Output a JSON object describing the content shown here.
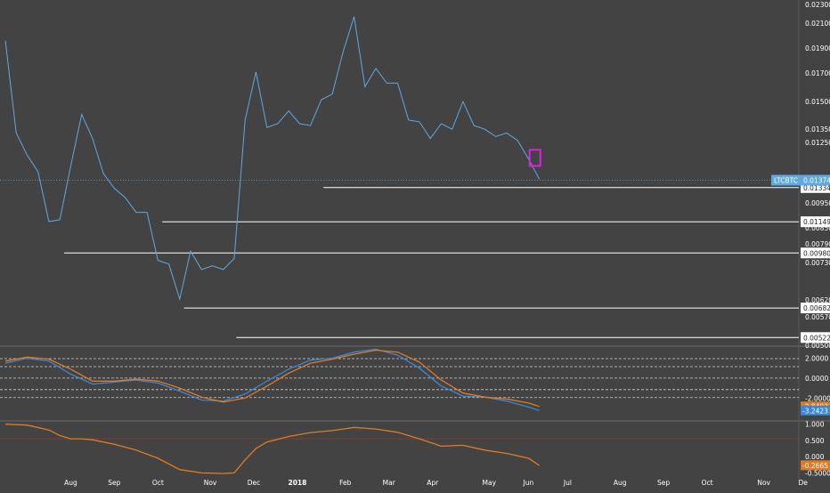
{
  "chart_data": [
    {
      "type": "line",
      "panel": "price",
      "symbol_label": "LTCBTC",
      "current_price_label": "0.01374",
      "ylim": [
        0.0048,
        0.0235
      ],
      "y_ticks": [
        "0.02300",
        "0.02100",
        "0.01900",
        "0.01700",
        "0.01500",
        "0.01350",
        "0.01250",
        "0.01050",
        "0.00950",
        "0.00850",
        "0.00790",
        "0.00730",
        "0.00620",
        "0.00570",
        "0.00500"
      ],
      "x_ticks": [
        {
          "label": "Aug",
          "t": 1.5
        },
        {
          "label": "Sep",
          "t": 2.5
        },
        {
          "label": "Oct",
          "t": 3.5
        },
        {
          "label": "Nov",
          "t": 4.7
        },
        {
          "label": "Dec",
          "t": 5.7
        },
        {
          "label": "2018",
          "t": 6.7,
          "bold": true
        },
        {
          "label": "Feb",
          "t": 7.8
        },
        {
          "label": "Mar",
          "t": 8.8
        },
        {
          "label": "Apr",
          "t": 9.8
        },
        {
          "label": "May",
          "t": 11.1
        },
        {
          "label": "Jun",
          "t": 12.0
        },
        {
          "label": "Jul",
          "t": 12.9
        },
        {
          "label": "Aug",
          "t": 14.1
        },
        {
          "label": "Sep",
          "t": 15.1
        },
        {
          "label": "Oct",
          "t": 16.1
        },
        {
          "label": "Nov",
          "t": 17.4
        },
        {
          "label": "De",
          "t": 18.3
        }
      ],
      "xlim": [
        0,
        19
      ],
      "series": [
        {
          "color": "#5fa8e0",
          "x": [
            0,
            0.25,
            0.5,
            0.75,
            1.0,
            1.25,
            1.5,
            1.75,
            2.0,
            2.25,
            2.5,
            2.75,
            3.0,
            3.25,
            3.5,
            3.75,
            4.0,
            4.25,
            4.5,
            4.75,
            5.0,
            5.25,
            5.5,
            5.75,
            6.0,
            6.25,
            6.5,
            6.75,
            7.0,
            7.25,
            7.5,
            7.75,
            8.0,
            8.25,
            8.5,
            8.75,
            9.0,
            9.25,
            9.5,
            9.75,
            10.0,
            10.25,
            10.5,
            10.75,
            11.0,
            11.25,
            11.5,
            11.75,
            12.0,
            12.25
          ],
          "values": [
            0.0213,
            0.0163,
            0.0151,
            0.0142,
            0.0115,
            0.0116,
            0.0145,
            0.0173,
            0.016,
            0.0141,
            0.0133,
            0.0128,
            0.012,
            0.012,
            0.0094,
            0.0092,
            0.0073,
            0.0099,
            0.0089,
            0.0091,
            0.0089,
            0.0095,
            0.017,
            0.0196,
            0.0166,
            0.0168,
            0.0175,
            0.0168,
            0.0167,
            0.0181,
            0.0184,
            0.0207,
            0.0226,
            0.0188,
            0.0198,
            0.019,
            0.019,
            0.017,
            0.0169,
            0.016,
            0.0168,
            0.0165,
            0.018,
            0.0167,
            0.0165,
            0.0161,
            0.0163,
            0.0159,
            0.0149,
            0.0138
          ]
        }
      ],
      "horizontal_levels": [
        {
          "value": 0.01334,
          "label": "0.01334",
          "t_start": 7.3
        },
        {
          "value": 0.01149,
          "label": "0.01149",
          "t_start": 3.6
        },
        {
          "value": 0.0098,
          "label": "0.00980",
          "t_start": 1.35
        },
        {
          "value": 0.00682,
          "label": "0.00682",
          "t_start": 4.1
        },
        {
          "value": 0.00522,
          "label": "0.00522",
          "t_start": 5.3
        }
      ],
      "marker": {
        "t": 12.15,
        "value": 0.015,
        "color": "#e020e0"
      }
    },
    {
      "type": "line",
      "panel": "oscillator",
      "ylim": [
        -4.2,
        3.2
      ],
      "y_ticks": [
        "2.0000",
        "0.0000",
        "-2.0000"
      ],
      "levels": [
        1.95,
        1.15,
        0.0,
        -1.15,
        -1.95
      ],
      "current_labels": [
        {
          "label": "-2.8403",
          "value": -2.8403,
          "color": "#e07b23"
        },
        {
          "label": "-3.2423",
          "value": -3.2423,
          "color": "#3b86d6"
        }
      ],
      "series": [
        {
          "color": "#3b86d6",
          "x": [
            0,
            0.5,
            1.0,
            1.5,
            2.0,
            2.5,
            3.0,
            3.5,
            4.0,
            4.5,
            5.0,
            5.5,
            6.0,
            6.5,
            7.0,
            7.5,
            8.0,
            8.5,
            9.0,
            9.5,
            10.0,
            10.5,
            11.0,
            11.5,
            12.0,
            12.25
          ],
          "values": [
            1.5,
            2.0,
            1.7,
            0.4,
            -0.6,
            -0.4,
            -0.2,
            -0.5,
            -1.3,
            -2.2,
            -2.3,
            -1.6,
            -0.3,
            0.9,
            1.8,
            2.0,
            2.6,
            2.9,
            2.3,
            1.0,
            -0.8,
            -1.8,
            -1.9,
            -2.3,
            -2.9,
            -3.24
          ]
        },
        {
          "color": "#e07b23",
          "x": [
            0,
            0.5,
            1.0,
            1.5,
            2.0,
            2.5,
            3.0,
            3.5,
            4.0,
            4.5,
            5.0,
            5.5,
            6.0,
            6.5,
            7.0,
            7.5,
            8.0,
            8.5,
            9.0,
            9.5,
            10.0,
            10.5,
            11.0,
            11.5,
            12.0,
            12.25
          ],
          "values": [
            1.7,
            2.1,
            1.9,
            0.9,
            -0.3,
            -0.3,
            -0.1,
            -0.3,
            -1.0,
            -1.9,
            -2.4,
            -2.0,
            -0.8,
            0.5,
            1.5,
            1.9,
            2.4,
            2.8,
            2.6,
            1.6,
            -0.2,
            -1.5,
            -1.9,
            -2.1,
            -2.5,
            -2.84
          ]
        }
      ]
    },
    {
      "type": "line",
      "panel": "indicator",
      "ylim": [
        -0.6,
        1.1
      ],
      "y_ticks": [
        "1.000",
        "0.500",
        "0.000",
        "-0.5000"
      ],
      "red_level": 0.55,
      "current_label": {
        "label": "-0.2665",
        "value": -0.2665,
        "color": "#e07b23"
      },
      "series": [
        {
          "color": "#e07b23",
          "x": [
            0,
            0.5,
            1.0,
            1.25,
            1.5,
            1.75,
            2.0,
            2.5,
            3.0,
            3.5,
            4.0,
            4.5,
            5.0,
            5.25,
            5.5,
            5.75,
            6.0,
            6.5,
            7.0,
            7.5,
            8.0,
            8.5,
            9.0,
            9.5,
            10.0,
            10.5,
            11.0,
            11.5,
            12.0,
            12.25
          ],
          "values": [
            1.0,
            0.97,
            0.82,
            0.65,
            0.55,
            0.55,
            0.52,
            0.38,
            0.2,
            -0.05,
            -0.4,
            -0.5,
            -0.52,
            -0.5,
            -0.1,
            0.25,
            0.45,
            0.62,
            0.74,
            0.8,
            0.9,
            0.85,
            0.75,
            0.55,
            0.32,
            0.35,
            0.2,
            0.1,
            -0.05,
            -0.27
          ]
        }
      ]
    }
  ],
  "colors": {
    "background": "#434343",
    "axis_text": "#ffffff",
    "label_box": "#ffffff",
    "symbol_box": "#5fa8e0"
  }
}
